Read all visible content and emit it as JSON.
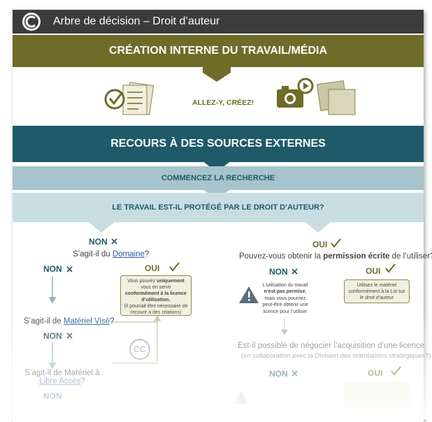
{
  "header": {
    "title": "Arbre de décision – Droit d’auteur"
  },
  "internal": {
    "title": "CRÉATION INTERNE DU TRAVAIL/MÉDIA",
    "action": "ALLEZ-Y, CRÉEZ!"
  },
  "external": {
    "title": "RECOURS À DES SOURCES EXTERNES"
  },
  "search": {
    "title": "COMMENCEZ LA RECHERCHE"
  },
  "question": {
    "title": "LE TRAVAIL EST-IL PROTÉGÉ PAR LE DROIT D’AUTEUR?"
  },
  "left": {
    "answer": "NON",
    "q1": [
      "S’agit-il du ",
      "Domaine",
      "?"
    ],
    "q1_no": "NON",
    "q1_yes": "OUI",
    "yes_box": [
      "Vous pouvez ",
      "uniquement",
      " vous en servir ",
      "conformément à la licence d’utilisation.",
      "(Il pourrait être nécessaire de recourir à des citations)"
    ],
    "q2": [
      "S’agit-il de ",
      "Matériel Visé",
      "?"
    ],
    "q2_no": "NON",
    "cc": "CC",
    "q3": [
      "S’agit-il de Matériel à ",
      "Libre Accès",
      "?"
    ],
    "q3_no": "NON"
  },
  "right": {
    "answer": "OUI",
    "q1": [
      "Pouvez-vous obtenir la ",
      "permission écrite",
      " de l’utiliser?"
    ],
    "q1_no": "NON",
    "q1_yes": "OUI",
    "no_box": [
      "L’utilisation du travail ",
      "n’est pas permise",
      ", mais vous pourriez peut-être obtenir une licence pour l’utiliser"
    ],
    "yes_box": [
      "Utilisez le matériel conformément à la ",
      "Loi sur le droit d’auteur"
    ],
    "q2": [
      "Est-il possible de négocier l’acquisition d’une licence",
      "(en collaboration avec la Division des orientations stratégiques?)"
    ],
    "q2_no": "NON",
    "q2_yes": "OUI"
  }
}
